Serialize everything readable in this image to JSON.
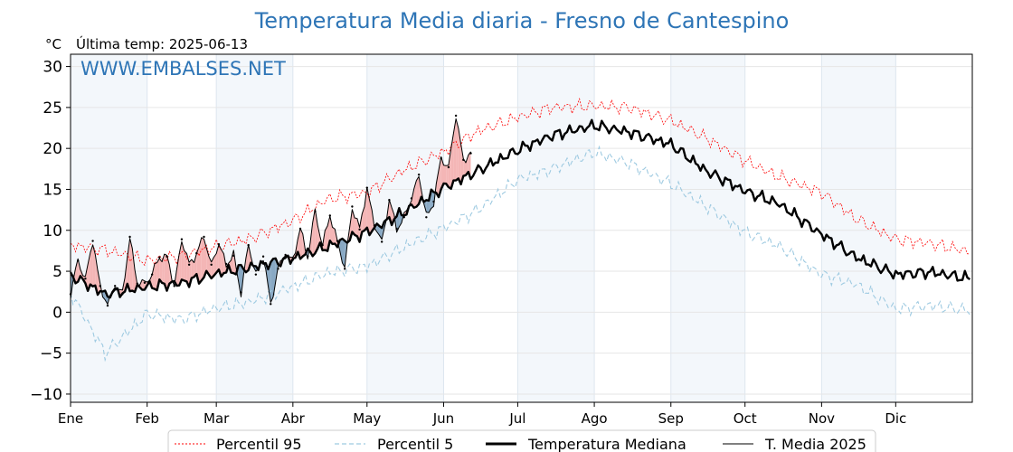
{
  "chart_data": {
    "type": "line",
    "title": "Temperatura Media diaria - Fresno de Cantespino",
    "ylabel": "°C",
    "subtitle": "Última temp: 2025-06-13",
    "watermark": "WWW.EMBALSES.NET",
    "ylim": [
      -11,
      31.5
    ],
    "yticks": [
      30,
      25,
      20,
      15,
      10,
      5,
      0,
      -5,
      -10
    ],
    "ytick_labels": [
      "30",
      "25",
      "20",
      "15",
      "10",
      "5",
      "0",
      "−5",
      "−10"
    ],
    "months": [
      "Ene",
      "Feb",
      "Mar",
      "Abr",
      "May",
      "Jun",
      "Jul",
      "Ago",
      "Sep",
      "Oct",
      "Nov",
      "Dic"
    ],
    "month_start_days": [
      1,
      32,
      60,
      91,
      121,
      152,
      182,
      213,
      244,
      274,
      305,
      335
    ],
    "grid": true,
    "legend_position": "bottom-center",
    "anchor_days": [
      1,
      15,
      32,
      46,
      60,
      74,
      91,
      105,
      121,
      135,
      152,
      166,
      182,
      196,
      213,
      227,
      244,
      258,
      274,
      288,
      305,
      319,
      335,
      349,
      365
    ],
    "series": [
      {
        "name": "Percentil 95",
        "color": "#ff0000",
        "style": "dotted",
        "values": [
          8.2,
          7.6,
          6.3,
          6.9,
          8.0,
          9.0,
          11.2,
          13.8,
          14.6,
          17.2,
          19.6,
          22.1,
          23.8,
          25.0,
          25.2,
          25.0,
          23.4,
          21.3,
          18.5,
          16.5,
          14.6,
          11.4,
          8.9,
          8.4,
          7.4
        ]
      },
      {
        "name": "Percentil 5",
        "color": "#9ecae1",
        "style": "dashed",
        "values": [
          2.4,
          -5.0,
          -0.2,
          -0.9,
          0.5,
          1.3,
          3.1,
          4.8,
          5.6,
          7.8,
          10.3,
          12.5,
          16.2,
          17.5,
          19.5,
          18.2,
          15.7,
          13.0,
          9.8,
          8.0,
          4.6,
          3.4,
          0.4,
          0.8,
          0.2
        ]
      },
      {
        "name": "Temperatura Mediana",
        "color": "#000000",
        "style": "solid-thick",
        "values": [
          4.5,
          2.2,
          3.1,
          3.6,
          4.7,
          5.5,
          6.6,
          8.0,
          9.8,
          12.0,
          15.2,
          17.3,
          19.8,
          21.6,
          22.8,
          22.0,
          20.5,
          17.3,
          14.8,
          13.2,
          9.5,
          6.7,
          4.6,
          4.9,
          4.1
        ]
      },
      {
        "name": "T. Media 2025",
        "color": "#000000",
        "style": "solid-thin",
        "days": [
          1,
          4,
          7,
          10,
          13,
          16,
          19,
          22,
          25,
          28,
          31,
          34,
          37,
          40,
          43,
          46,
          49,
          52,
          55,
          58,
          61,
          64,
          67,
          70,
          73,
          76,
          79,
          82,
          85,
          88,
          91,
          94,
          97,
          100,
          103,
          106,
          109,
          112,
          115,
          118,
          121,
          124,
          127,
          130,
          133,
          136,
          139,
          142,
          145,
          148,
          151,
          154,
          157,
          160,
          163
        ],
        "values": [
          2.2,
          6.3,
          4.1,
          8.7,
          3.2,
          0.8,
          3.2,
          2.2,
          9.2,
          3.5,
          3.6,
          4.6,
          6.7,
          6.8,
          3.2,
          8.9,
          5.8,
          7.2,
          9.2,
          5.8,
          8.3,
          5.9,
          6.9,
          2.4,
          8.2,
          4.6,
          6.8,
          1.0,
          5.3,
          7.0,
          6.4,
          10.2,
          6.8,
          12.3,
          8.2,
          11.8,
          8.7,
          5.3,
          12.9,
          10.1,
          15.2,
          10.6,
          8.6,
          13.7,
          10.2,
          11.6,
          13.9,
          16.8,
          11.6,
          13.5,
          18.8,
          17.7,
          24.0,
          18.6,
          19.4
        ]
      }
    ]
  }
}
